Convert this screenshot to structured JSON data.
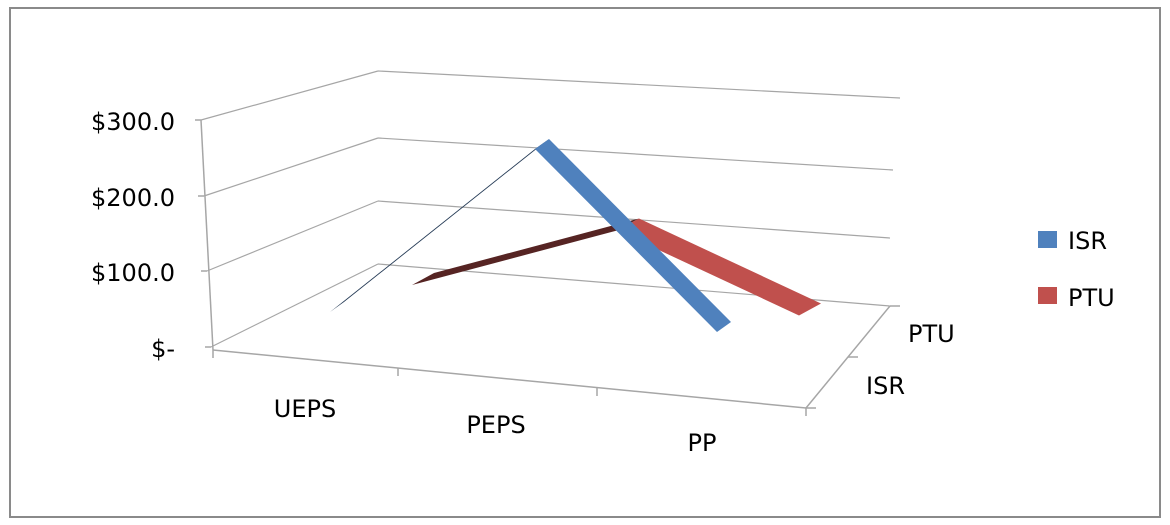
{
  "chart_data": {
    "type": "line",
    "subtype": "3d-line",
    "categories": [
      "UEPS",
      "PEPS",
      "PP"
    ],
    "series": [
      {
        "name": "ISR",
        "values": [
          0,
          270,
          40
        ],
        "color": "#4F81BD"
      },
      {
        "name": "PTU",
        "values": [
          0,
          115,
          25
        ],
        "color": "#C0504D"
      }
    ],
    "y_ticks": [
      "$-",
      "$100.0",
      "$200.0",
      "$300.0"
    ],
    "depth_ticks": [
      "ISR",
      "PTU"
    ],
    "ylim": [
      0,
      400
    ],
    "grid": true,
    "legend_position": "right"
  }
}
